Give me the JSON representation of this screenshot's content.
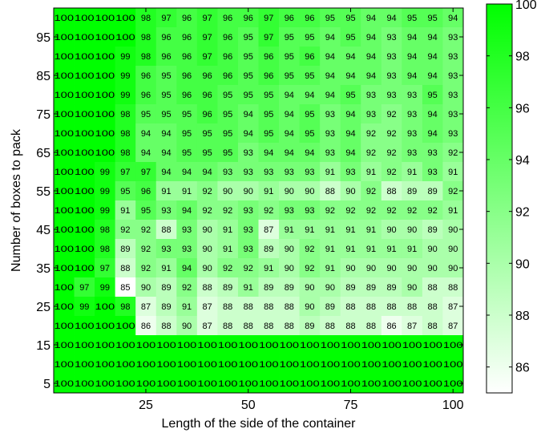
{
  "chart_data": {
    "type": "heatmap",
    "xlabel": "Length of the side of the container",
    "ylabel": "Number of boxes to pack",
    "x": [
      5,
      10,
      15,
      20,
      25,
      30,
      35,
      40,
      45,
      50,
      55,
      60,
      65,
      70,
      75,
      80,
      85,
      90,
      95,
      100
    ],
    "y": [
      100,
      95,
      90,
      85,
      80,
      75,
      70,
      65,
      60,
      55,
      50,
      45,
      40,
      35,
      30,
      25,
      20,
      15,
      10,
      5
    ],
    "x_ticks": [
      25,
      50,
      75,
      100
    ],
    "y_ticks": [
      95,
      85,
      75,
      65,
      55,
      45,
      35,
      25,
      15,
      5
    ],
    "colorbar": {
      "min": 85,
      "max": 100,
      "ticks": [
        86,
        88,
        90,
        92,
        94,
        96,
        98,
        100
      ]
    },
    "colormap": {
      "low": "#ffffff",
      "high": "#00ff00"
    },
    "values": [
      [
        100,
        100,
        100,
        100,
        98,
        97,
        96,
        97,
        96,
        96,
        97,
        96,
        96,
        95,
        95,
        94,
        94,
        95,
        95,
        94
      ],
      [
        100,
        100,
        100,
        100,
        98,
        96,
        96,
        97,
        96,
        95,
        97,
        95,
        95,
        94,
        95,
        94,
        93,
        94,
        94,
        93
      ],
      [
        100,
        100,
        100,
        99,
        98,
        96,
        96,
        97,
        96,
        95,
        96,
        95,
        96,
        94,
        94,
        94,
        93,
        94,
        94,
        93
      ],
      [
        100,
        100,
        100,
        99,
        96,
        95,
        96,
        96,
        96,
        95,
        96,
        95,
        95,
        94,
        94,
        94,
        93,
        94,
        94,
        93
      ],
      [
        100,
        100,
        100,
        99,
        96,
        95,
        96,
        96,
        95,
        95,
        95,
        94,
        94,
        94,
        95,
        93,
        93,
        93,
        95,
        93
      ],
      [
        100,
        100,
        100,
        98,
        95,
        95,
        95,
        96,
        95,
        94,
        95,
        94,
        95,
        93,
        94,
        93,
        92,
        93,
        94,
        93
      ],
      [
        100,
        100,
        100,
        98,
        94,
        94,
        95,
        95,
        95,
        94,
        95,
        94,
        95,
        93,
        94,
        92,
        92,
        93,
        94,
        93
      ],
      [
        100,
        100,
        100,
        98,
        94,
        94,
        95,
        95,
        95,
        93,
        94,
        94,
        94,
        93,
        94,
        92,
        92,
        93,
        93,
        92
      ],
      [
        100,
        100,
        99,
        97,
        97,
        94,
        94,
        94,
        93,
        93,
        93,
        93,
        93,
        91,
        93,
        91,
        92,
        91,
        93,
        91
      ],
      [
        100,
        100,
        99,
        95,
        96,
        91,
        91,
        92,
        90,
        90,
        91,
        90,
        90,
        88,
        90,
        92,
        88,
        89,
        89,
        92
      ],
      [
        100,
        100,
        99,
        91,
        95,
        93,
        94,
        92,
        92,
        93,
        92,
        93,
        93,
        92,
        92,
        92,
        92,
        92,
        92,
        91
      ],
      [
        100,
        100,
        98,
        92,
        92,
        88,
        93,
        90,
        91,
        93,
        87,
        91,
        91,
        91,
        91,
        91,
        90,
        90,
        89,
        90
      ],
      [
        100,
        100,
        98,
        89,
        92,
        93,
        93,
        90,
        91,
        93,
        89,
        90,
        92,
        91,
        91,
        91,
        91,
        91,
        90,
        90
      ],
      [
        100,
        100,
        97,
        88,
        92,
        91,
        94,
        90,
        92,
        92,
        91,
        90,
        92,
        91,
        90,
        90,
        90,
        90,
        90,
        90
      ],
      [
        100,
        97,
        99,
        85,
        90,
        89,
        92,
        88,
        89,
        91,
        89,
        89,
        90,
        90,
        89,
        89,
        89,
        90,
        88,
        88
      ],
      [
        100,
        99,
        100,
        98,
        87,
        89,
        91,
        87,
        88,
        88,
        88,
        88,
        90,
        89,
        88,
        88,
        88,
        88,
        88,
        87
      ],
      [
        100,
        100,
        100,
        100,
        86,
        88,
        90,
        87,
        88,
        88,
        88,
        88,
        89,
        88,
        88,
        88,
        86,
        87,
        88,
        87
      ],
      [
        100,
        100,
        100,
        100,
        100,
        100,
        100,
        100,
        100,
        100,
        100,
        100,
        100,
        100,
        100,
        100,
        100,
        100,
        100,
        100
      ],
      [
        100,
        100,
        100,
        100,
        100,
        100,
        100,
        100,
        100,
        100,
        100,
        100,
        100,
        100,
        100,
        100,
        100,
        100,
        100,
        100
      ],
      [
        100,
        100,
        100,
        100,
        100,
        100,
        100,
        100,
        100,
        100,
        100,
        100,
        100,
        100,
        100,
        100,
        100,
        100,
        100,
        100
      ]
    ]
  }
}
